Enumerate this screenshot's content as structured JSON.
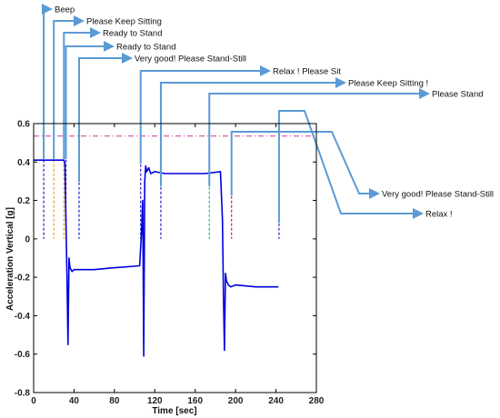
{
  "chart_data": {
    "type": "line",
    "title": "",
    "xlabel": "Time [sec]",
    "ylabel": "Acceleration Vertical [g]",
    "xlim": [
      0,
      280
    ],
    "ylim": [
      -0.8,
      0.6
    ],
    "xticks": [
      0,
      40,
      80,
      120,
      160,
      200,
      240,
      280
    ],
    "yticks": [
      -0.8,
      -0.6,
      -0.4,
      -0.2,
      0,
      0.2,
      0.4,
      0.6
    ],
    "grid": false,
    "series": [
      {
        "color": "#0000dd",
        "x": [
          0,
          30,
          31,
          32,
          33,
          34,
          35,
          36,
          38,
          40,
          60,
          80,
          105,
          107,
          108,
          109,
          110,
          111,
          112,
          114,
          116,
          120,
          130,
          150,
          170,
          185,
          187,
          188,
          189,
          190,
          191,
          193,
          195,
          200,
          220,
          240,
          242
        ],
        "y": [
          0.41,
          0.41,
          0.39,
          0.1,
          -0.2,
          -0.55,
          -0.1,
          -0.15,
          -0.17,
          -0.16,
          -0.16,
          -0.15,
          -0.14,
          0.05,
          0.2,
          -0.61,
          0.3,
          0.38,
          0.35,
          0.37,
          0.34,
          0.35,
          0.34,
          0.34,
          0.34,
          0.35,
          0.1,
          -0.3,
          -0.58,
          -0.18,
          -0.22,
          -0.24,
          -0.25,
          -0.24,
          -0.25,
          -0.25,
          -0.25
        ]
      }
    ],
    "reference_line": {
      "y": 0.535,
      "color": "#cc3399"
    },
    "events": [
      {
        "label": "Beep",
        "time": 10,
        "color": "#2222cc"
      },
      {
        "label": "Please Keep Sitting",
        "time": 20,
        "color": "#f0a020"
      },
      {
        "label": "Ready to Stand",
        "time": 30,
        "color": "#f0a020"
      },
      {
        "label": "Ready to Stand",
        "time": 32,
        "color": "#2222cc"
      },
      {
        "label": "Very good! Please Stand-Still",
        "time": 45,
        "color": "#2222cc"
      },
      {
        "label": "Relax ! Please Sit",
        "time": 106,
        "color": "#2222cc"
      },
      {
        "label": "Please Keep Sitting !",
        "time": 126,
        "color": "#2222cc"
      },
      {
        "label": "Please Stand",
        "time": 174,
        "color": "#22bb88"
      },
      {
        "label": "Very good! Please Stand-Still",
        "time": 196,
        "color": "#dd2222"
      },
      {
        "label": "Relax !",
        "time": 243,
        "color": "#2222cc"
      }
    ],
    "annotation_arrow_color": "#5b9bd5"
  }
}
